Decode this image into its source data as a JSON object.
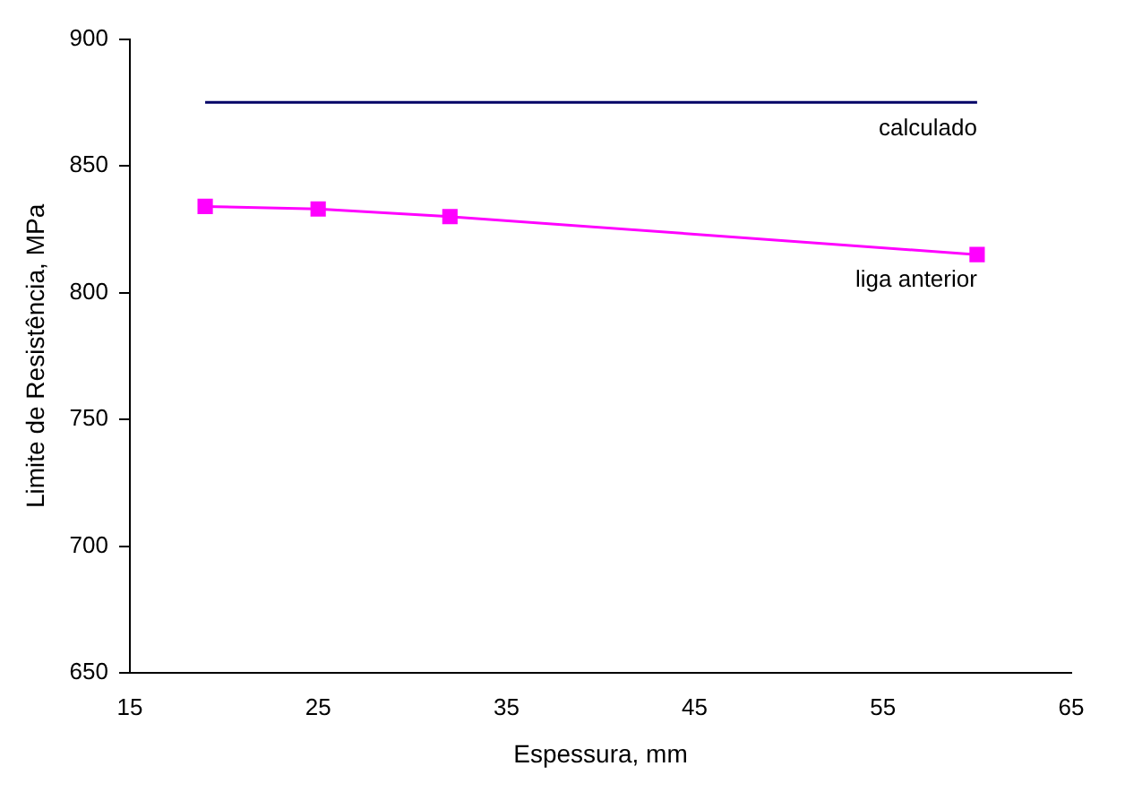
{
  "chart_data": {
    "type": "line",
    "xlabel": "Espessura, mm",
    "ylabel": "Limite de Resistência, MPa",
    "xlim": [
      15,
      65
    ],
    "xticks": [
      15,
      25,
      35,
      45,
      55,
      65
    ],
    "ylim": [
      650,
      900
    ],
    "yticks": [
      650,
      700,
      750,
      800,
      850,
      900
    ],
    "grid": false,
    "legend": false,
    "series": [
      {
        "name": "calculado",
        "color": "#000066",
        "x": [
          19,
          60
        ],
        "values": [
          875,
          875
        ],
        "marker": "none"
      },
      {
        "name": "liga anterior",
        "color": "#ff00ff",
        "x": [
          19,
          25,
          32,
          60
        ],
        "values": [
          834,
          833,
          830,
          815
        ],
        "marker": "square"
      }
    ]
  }
}
